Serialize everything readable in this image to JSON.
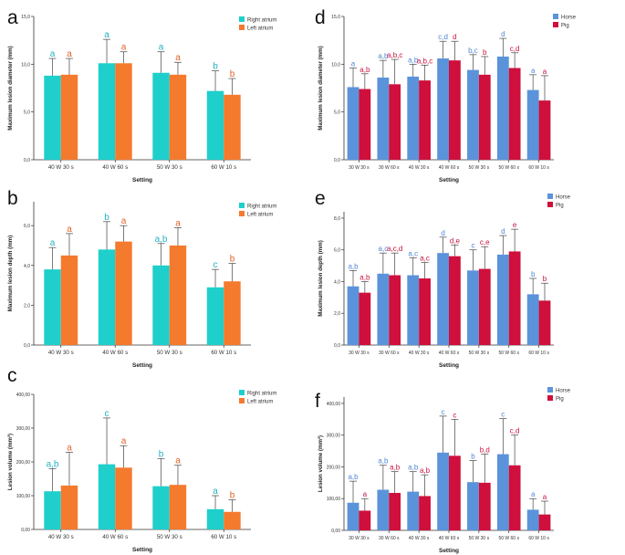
{
  "colors": {
    "right_atrium": "#1ecfcb",
    "left_atrium": "#f47a2e",
    "horse": "#5b93db",
    "pig": "#cf0f3c",
    "label_cyan": "#22b3c4",
    "label_orange": "#e0642a",
    "label_blue": "#4f86d6",
    "label_red": "#c9133e"
  },
  "chart_data": [
    {
      "panel": "a",
      "type": "bar",
      "ylabel": "Maximum lesion diameter (mm)",
      "xlabel": "Setting",
      "ylim": [
        0,
        15
      ],
      "yticks": [
        "0,0",
        "5,0",
        "10,0",
        "15,0"
      ],
      "ytick_values": [
        0,
        5,
        10,
        15
      ],
      "categories": [
        "40 W 30 s",
        "40 W 60 s",
        "50 W 30 s",
        "60 W 10 s"
      ],
      "legend": [
        "Right atrium",
        "Left atrium"
      ],
      "series": [
        {
          "name": "Right atrium",
          "color": "#1ecfcb",
          "label_color": "#22b3c4",
          "values": [
            8.8,
            10.1,
            9.1,
            7.2
          ],
          "err": [
            10.6,
            12.6,
            11.3,
            9.3
          ],
          "letters": [
            "a",
            "a",
            "a",
            "b"
          ]
        },
        {
          "name": "Left atrium",
          "color": "#f47a2e",
          "label_color": "#e0642a",
          "values": [
            8.9,
            10.1,
            8.9,
            6.8
          ],
          "err": [
            10.6,
            11.3,
            10.2,
            8.5
          ],
          "letters": [
            "a",
            "a",
            "a",
            "b"
          ]
        }
      ]
    },
    {
      "panel": "b",
      "type": "bar",
      "ylabel": "Maximum lesion depth (mm)",
      "xlabel": "Setting",
      "ylim": [
        0,
        7.2
      ],
      "yticks": [
        "0,0",
        "2,0",
        "4,0",
        "6,0"
      ],
      "ytick_values": [
        0,
        2,
        4,
        6
      ],
      "categories": [
        "40 W 30 s",
        "40 W 60 s",
        "50 W 30 s",
        "60 W 10 s"
      ],
      "legend": [
        "Right atrium",
        "Left atrium"
      ],
      "series": [
        {
          "name": "Right atrium",
          "color": "#1ecfcb",
          "label_color": "#22b3c4",
          "values": [
            3.8,
            4.8,
            4.0,
            2.9
          ],
          "err": [
            4.9,
            6.2,
            5.1,
            3.8
          ],
          "letters": [
            "a",
            "b",
            "a,b",
            "c"
          ]
        },
        {
          "name": "Left atrium",
          "color": "#f47a2e",
          "label_color": "#e0642a",
          "values": [
            4.5,
            5.2,
            5.0,
            3.2
          ],
          "err": [
            5.6,
            6.0,
            5.9,
            4.1
          ],
          "letters": [
            "a",
            "a",
            "a",
            "b"
          ]
        }
      ]
    },
    {
      "panel": "c",
      "type": "bar",
      "ylabel": "Lesion volume (mm³)",
      "xlabel": "Setting",
      "ylim": [
        0,
        400
      ],
      "yticks": [
        "0,00",
        "100,00",
        "200,00",
        "300,00",
        "400,00"
      ],
      "ytick_values": [
        0,
        100,
        200,
        300,
        400
      ],
      "categories": [
        "40 W 30 s",
        "40 W 60 s",
        "50 W 30 s",
        "60 W 10 s"
      ],
      "legend": [
        "Right atrium",
        "Left atrium"
      ],
      "series": [
        {
          "name": "Right atrium",
          "color": "#1ecfcb",
          "label_color": "#22b3c4",
          "values": [
            113,
            193,
            128,
            60
          ],
          "err": [
            180,
            330,
            210,
            100
          ],
          "letters": [
            "a,b",
            "c",
            "b",
            "a"
          ]
        },
        {
          "name": "Left atrium",
          "color": "#f47a2e",
          "label_color": "#e0642a",
          "values": [
            130,
            183,
            132,
            52
          ],
          "err": [
            228,
            248,
            190,
            88
          ],
          "letters": [
            "a",
            "a",
            "a",
            "b"
          ]
        }
      ]
    },
    {
      "panel": "d",
      "type": "bar",
      "ylabel": "Maximum lesion diameter (mm)",
      "xlabel": "Setting",
      "ylim": [
        0,
        15
      ],
      "yticks": [
        "0,0",
        "5,0",
        "10,0",
        "15,0"
      ],
      "ytick_values": [
        0,
        5,
        10,
        15
      ],
      "categories": [
        "30 W 30 s",
        "30 W 60 s",
        "40 W 30 s",
        "40 W 60 s",
        "50 W 30 s",
        "50 W 60 s",
        "60 W 10 s"
      ],
      "legend": [
        "Horse",
        "Pig"
      ],
      "series": [
        {
          "name": "Horse",
          "color": "#5b93db",
          "label_color": "#4f86d6",
          "values": [
            7.6,
            8.6,
            8.7,
            10.6,
            9.4,
            10.8,
            7.3
          ],
          "err": [
            9.6,
            10.4,
            10.0,
            12.4,
            11.0,
            12.7,
            8.9
          ],
          "letters": [
            "a",
            "a,b",
            "a,b",
            "c,d",
            "b,c",
            "d",
            "a"
          ]
        },
        {
          "name": "Pig",
          "color": "#cf0f3c",
          "label_color": "#c9133e",
          "values": [
            7.4,
            7.9,
            8.3,
            10.4,
            8.9,
            9.6,
            6.2
          ],
          "err": [
            9.0,
            10.5,
            9.9,
            12.4,
            10.8,
            11.2,
            8.8
          ],
          "letters": [
            "a,b",
            "a,b,c",
            "a,b,c",
            "d",
            "b",
            "c,d",
            "a"
          ]
        }
      ]
    },
    {
      "panel": "e",
      "type": "bar",
      "ylabel": "Maximum lesion depth (mm)",
      "xlabel": "Setting",
      "ylim": [
        0,
        8.4
      ],
      "yticks": [
        "0,0",
        "2,0",
        "4,0",
        "6,0",
        "8,0"
      ],
      "ytick_values": [
        0,
        2,
        4,
        6,
        8
      ],
      "categories": [
        "30 W 30 s",
        "30 W 60 s",
        "40 W 30 s",
        "40 W 60 s",
        "50 W 30 s",
        "50 W 60 s",
        "60 W 10 s"
      ],
      "legend": [
        "Horse",
        "Pig"
      ],
      "series": [
        {
          "name": "Horse",
          "color": "#5b93db",
          "label_color": "#4f86d6",
          "values": [
            3.7,
            4.5,
            4.4,
            5.8,
            4.7,
            5.7,
            3.2
          ],
          "err": [
            4.7,
            5.8,
            5.5,
            6.8,
            6.0,
            6.9,
            4.2
          ],
          "letters": [
            "a,b",
            "a,c",
            "a,c",
            "d",
            "c",
            "d",
            "b"
          ]
        },
        {
          "name": "Pig",
          "color": "#cf0f3c",
          "label_color": "#c9133e",
          "values": [
            3.3,
            4.4,
            4.2,
            5.6,
            4.8,
            5.9,
            2.8
          ],
          "err": [
            4.0,
            5.8,
            5.2,
            6.3,
            6.2,
            7.3,
            3.9
          ],
          "letters": [
            "a,b",
            "a,c,d",
            "a,c",
            "d,e",
            "c,e",
            "e",
            "b"
          ]
        }
      ]
    },
    {
      "panel": "f",
      "type": "bar",
      "ylabel": "Lesion volume (mm³)",
      "xlabel": "Setting",
      "ylim": [
        0,
        420
      ],
      "yticks": [
        "0,00",
        "100,00",
        "200,00",
        "300,00",
        "400,00"
      ],
      "ytick_values": [
        0,
        100,
        200,
        300,
        400
      ],
      "categories": [
        "30 W 30 s",
        "30 W 60 s",
        "40 W 30 s",
        "40 W 60 s",
        "50 W 30 s",
        "50 W 60 s",
        "60 W 10 s"
      ],
      "legend": [
        "Horse",
        "Pig"
      ],
      "series": [
        {
          "name": "Horse",
          "color": "#5b93db",
          "label_color": "#4f86d6",
          "values": [
            87,
            128,
            122,
            245,
            152,
            240,
            65
          ],
          "err": [
            155,
            205,
            185,
            360,
            220,
            352,
            100
          ],
          "letters": [
            "a,b",
            "a,b",
            "a,b",
            "c",
            "b",
            "c",
            "a"
          ]
        },
        {
          "name": "Pig",
          "color": "#cf0f3c",
          "label_color": "#c9133e",
          "values": [
            62,
            118,
            108,
            235,
            150,
            205,
            50
          ],
          "err": [
            100,
            185,
            175,
            350,
            240,
            300,
            92
          ],
          "letters": [
            "a",
            "a,b",
            "a,b",
            "c",
            "b,d",
            "c,d",
            "a"
          ]
        }
      ]
    }
  ]
}
